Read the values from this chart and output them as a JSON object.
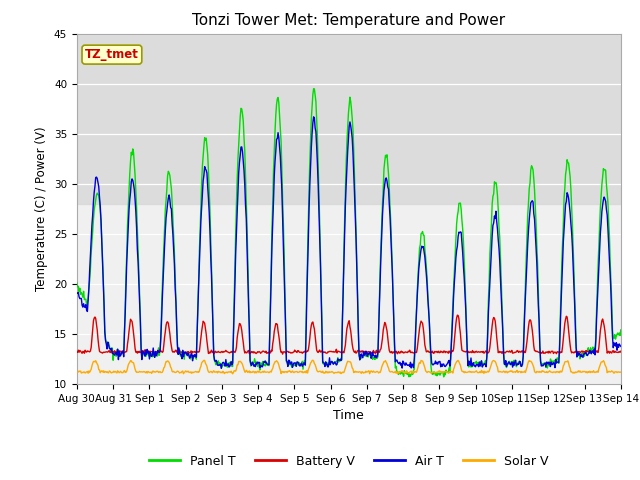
{
  "title": "Tonzi Tower Met: Temperature and Power",
  "xlabel": "Time",
  "ylabel": "Temperature (C) / Power (V)",
  "ylim": [
    10,
    45
  ],
  "yticks": [
    10,
    15,
    20,
    25,
    30,
    35,
    40,
    45
  ],
  "annotation_text": "TZ_tmet",
  "annotation_color": "#cc0000",
  "annotation_bg": "#ffffcc",
  "bg_band_low": 28,
  "bg_band_high": 45,
  "colors": {
    "panel_t": "#00dd00",
    "battery_v": "#dd0000",
    "air_t": "#0000dd",
    "solar_v": "#ffaa00"
  },
  "legend_labels": [
    "Panel T",
    "Battery V",
    "Air T",
    "Solar V"
  ],
  "fig_bg": "#ffffff",
  "axes_bg": "#f0f0f0"
}
